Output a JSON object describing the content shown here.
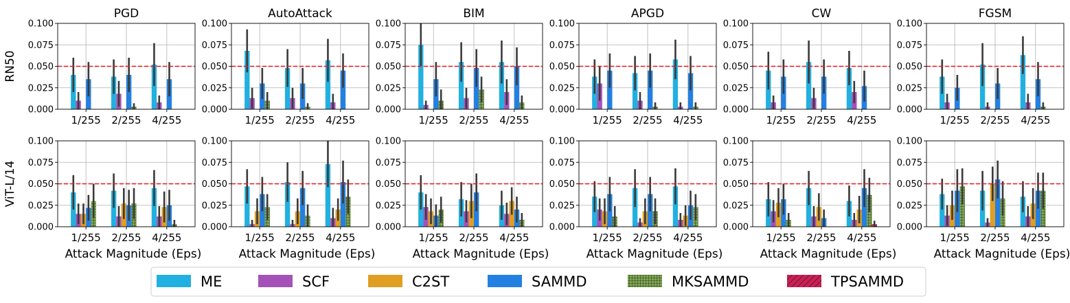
{
  "chart_data": {
    "type": "bar",
    "row_labels": [
      "RN50",
      "ViT-L/14"
    ],
    "attacks": [
      "PGD",
      "AutoAttack",
      "BIM",
      "APGD",
      "CW",
      "FGSM"
    ],
    "categories": [
      "1/255",
      "2/255",
      "4/255"
    ],
    "xlabel": "Attack Magnitude (Eps)",
    "ylim": [
      0,
      0.1
    ],
    "yticks": [
      "0.000",
      "0.025",
      "0.050",
      "0.075",
      "0.100"
    ],
    "threshold": 0.05,
    "grid": true,
    "legend_position": "bottom-center",
    "methods": [
      {
        "name": "ME",
        "color": "#22b0e0",
        "hatch": "none"
      },
      {
        "name": "SCF",
        "color": "#a552b8",
        "hatch": "none"
      },
      {
        "name": "C2ST",
        "color": "#e09f22",
        "hatch": "none"
      },
      {
        "name": "SAMMD",
        "color": "#2480e0",
        "hatch": "none"
      },
      {
        "name": "MKSAMMD",
        "color": "#7ea850",
        "hatch": "grid"
      },
      {
        "name": "TPSAMMD",
        "color": "#cc1f55",
        "hatch": "diagonal"
      }
    ],
    "panels": [
      {
        "row": 0,
        "attack": "PGD",
        "values": [
          [
            0.04,
            0.01,
            0,
            0.035,
            0,
            0
          ],
          [
            0.038,
            0.018,
            0,
            0.04,
            0.003,
            0
          ],
          [
            0.052,
            0.008,
            0,
            0.035,
            0,
            0
          ]
        ],
        "errors": [
          [
            0.02,
            0.01,
            0,
            0.02,
            0,
            0
          ],
          [
            0.02,
            0.015,
            0,
            0.02,
            0.004,
            0
          ],
          [
            0.025,
            0.008,
            0,
            0.02,
            0,
            0
          ]
        ]
      },
      {
        "row": 0,
        "attack": "AutoAttack",
        "values": [
          [
            0.068,
            0.013,
            0,
            0.03,
            0.01,
            0
          ],
          [
            0.048,
            0.013,
            0,
            0.03,
            0.003,
            0
          ],
          [
            0.057,
            0.008,
            0,
            0.045,
            0,
            0
          ]
        ],
        "errors": [
          [
            0.025,
            0.012,
            0,
            0.018,
            0.01,
            0
          ],
          [
            0.022,
            0.012,
            0,
            0.018,
            0.004,
            0
          ],
          [
            0.025,
            0.01,
            0,
            0.02,
            0,
            0
          ]
        ]
      },
      {
        "row": 0,
        "attack": "BIM",
        "values": [
          [
            0.075,
            0.005,
            0,
            0.035,
            0.01,
            0
          ],
          [
            0.055,
            0.013,
            0,
            0.048,
            0.023,
            0
          ],
          [
            0.055,
            0.02,
            0,
            0.05,
            0.008,
            0
          ]
        ],
        "errors": [
          [
            0.025,
            0.005,
            0,
            0.02,
            0.013,
            0
          ],
          [
            0.023,
            0.012,
            0,
            0.022,
            0.015,
            0
          ],
          [
            0.025,
            0.015,
            0,
            0.022,
            0.008,
            0
          ]
        ]
      },
      {
        "row": 0,
        "attack": "APGD",
        "values": [
          [
            0.038,
            0.03,
            0,
            0.045,
            0,
            0
          ],
          [
            0.042,
            0.01,
            0,
            0.045,
            0.003,
            0
          ],
          [
            0.058,
            0.003,
            0,
            0.042,
            0.003,
            0
          ]
        ],
        "errors": [
          [
            0.02,
            0.02,
            0,
            0.02,
            0,
            0
          ],
          [
            0.02,
            0.01,
            0,
            0.02,
            0.005,
            0
          ],
          [
            0.023,
            0.005,
            0,
            0.02,
            0.005,
            0
          ]
        ]
      },
      {
        "row": 0,
        "attack": "CW",
        "values": [
          [
            0.045,
            0.008,
            0,
            0.038,
            0,
            0
          ],
          [
            0.055,
            0.013,
            0,
            0.038,
            0,
            0
          ],
          [
            0.048,
            0.02,
            0,
            0.027,
            0,
            0
          ]
        ],
        "errors": [
          [
            0.022,
            0.008,
            0,
            0.02,
            0,
            0
          ],
          [
            0.025,
            0.012,
            0,
            0.02,
            0,
            0
          ],
          [
            0.02,
            0.013,
            0,
            0.018,
            0,
            0
          ]
        ]
      },
      {
        "row": 0,
        "attack": "FGSM",
        "values": [
          [
            0.038,
            0.008,
            0,
            0.025,
            0,
            0
          ],
          [
            0.052,
            0.003,
            0,
            0.03,
            0,
            0
          ],
          [
            0.063,
            0.008,
            0,
            0.035,
            0.003,
            0
          ]
        ],
        "errors": [
          [
            0.02,
            0.01,
            0,
            0.015,
            0,
            0
          ],
          [
            0.025,
            0.005,
            0,
            0.018,
            0,
            0
          ],
          [
            0.022,
            0.01,
            0,
            0.02,
            0.005,
            0
          ]
        ]
      },
      {
        "row": 1,
        "attack": "PGD",
        "values": [
          [
            0.04,
            0.015,
            0.015,
            0.022,
            0.03,
            0
          ],
          [
            0.042,
            0.012,
            0.027,
            0.025,
            0.027,
            0
          ],
          [
            0.045,
            0.012,
            0.023,
            0.025,
            0.003,
            0
          ]
        ],
        "errors": [
          [
            0.02,
            0.012,
            0.012,
            0.015,
            0.02,
            0
          ],
          [
            0.02,
            0.012,
            0.018,
            0.018,
            0.018,
            0
          ],
          [
            0.021,
            0.012,
            0.018,
            0.018,
            0.005,
            0
          ]
        ]
      },
      {
        "row": 1,
        "attack": "AutoAttack",
        "values": [
          [
            0.047,
            0.003,
            0.018,
            0.038,
            0.023,
            0
          ],
          [
            0.052,
            0.003,
            0.018,
            0.045,
            0.013,
            0
          ],
          [
            0.073,
            0.01,
            0.02,
            0.052,
            0.035,
            0
          ]
        ],
        "errors": [
          [
            0.02,
            0.005,
            0.015,
            0.02,
            0.015,
            0
          ],
          [
            0.023,
            0.005,
            0.015,
            0.02,
            0.013,
            0
          ],
          [
            0.027,
            0.012,
            0.013,
            0.025,
            0.02,
            0
          ]
        ]
      },
      {
        "row": 1,
        "attack": "BIM",
        "values": [
          [
            0.04,
            0.023,
            0.018,
            0.013,
            0.02,
            0
          ],
          [
            0.032,
            0.018,
            0.03,
            0.04,
            0,
            0
          ],
          [
            0.025,
            0.015,
            0.03,
            0.02,
            0.008,
            0
          ]
        ],
        "errors": [
          [
            0.02,
            0.015,
            0.015,
            0.013,
            0.015,
            0
          ],
          [
            0.02,
            0.013,
            0.02,
            0.022,
            0,
            0
          ],
          [
            0.017,
            0.013,
            0.016,
            0.015,
            0.008,
            0
          ]
        ]
      },
      {
        "row": 1,
        "attack": "APGD",
        "values": [
          [
            0.035,
            0.02,
            0.018,
            0.038,
            0.012,
            0
          ],
          [
            0.045,
            0.005,
            0.018,
            0.038,
            0.018,
            0
          ],
          [
            0.047,
            0.008,
            0.013,
            0.025,
            0.023,
            0
          ]
        ],
        "errors": [
          [
            0.018,
            0.013,
            0.015,
            0.02,
            0.012,
            0
          ],
          [
            0.022,
            0.005,
            0.015,
            0.02,
            0.015,
            0
          ],
          [
            0.021,
            0.008,
            0.012,
            0.017,
            0.015,
            0
          ]
        ]
      },
      {
        "row": 1,
        "attack": "CW",
        "values": [
          [
            0.032,
            0.018,
            0.028,
            0.032,
            0.008,
            0
          ],
          [
            0.045,
            0.012,
            0.023,
            0.01,
            0,
            0
          ],
          [
            0.03,
            0.008,
            0.02,
            0.045,
            0.037,
            0.003
          ]
        ],
        "errors": [
          [
            0.02,
            0.013,
            0.017,
            0.018,
            0.008,
            0
          ],
          [
            0.02,
            0.012,
            0.016,
            0.01,
            0,
            0
          ],
          [
            0.018,
            0.008,
            0.016,
            0.022,
            0.02,
            0.004
          ]
        ]
      },
      {
        "row": 1,
        "attack": "FGSM",
        "values": [
          [
            0.038,
            0.013,
            0.025,
            0.042,
            0.047,
            0
          ],
          [
            0.042,
            0.005,
            0.05,
            0.055,
            0.033,
            0
          ],
          [
            0.035,
            0.012,
            0.027,
            0.042,
            0.042,
            0
          ]
        ],
        "errors": [
          [
            0.018,
            0.012,
            0.017,
            0.025,
            0.021,
            0
          ],
          [
            0.023,
            0.005,
            0.02,
            0.022,
            0.02,
            0
          ],
          [
            0.018,
            0.012,
            0.018,
            0.021,
            0.021,
            0
          ]
        ]
      }
    ]
  }
}
